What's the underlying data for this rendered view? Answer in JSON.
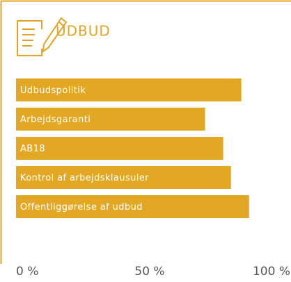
{
  "chart_data": {
    "type": "bar",
    "orientation": "horizontal",
    "title": "UDBUD",
    "categories": [
      "Udbudspolitik",
      "Arbejdsgaranti",
      "AB18",
      "Kontrol af arbejdsklausuler",
      "Offentliggørelse af udbud"
    ],
    "values": [
      87,
      73,
      80,
      83,
      90
    ],
    "color": "#e2a824",
    "xlim": [
      0,
      100
    ],
    "xticks": [
      {
        "value": 0,
        "label": "0 %"
      },
      {
        "value": 50,
        "label": "50 %"
      },
      {
        "value": 100,
        "label": "100 %"
      }
    ]
  }
}
